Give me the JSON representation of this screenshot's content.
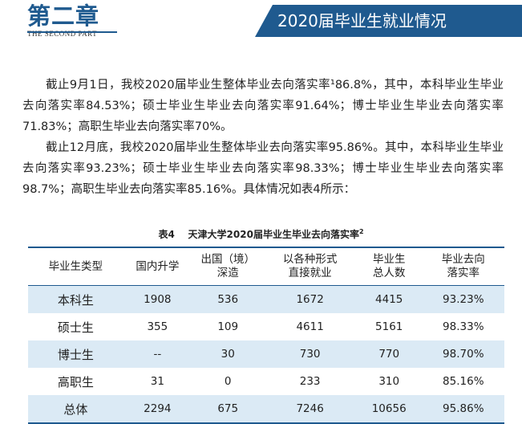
{
  "header": {
    "chapter_cn": "第二章",
    "chapter_en": "THE SECOND PART",
    "banner_title": "2020届毕业生就业情况"
  },
  "paragraphs": [
    "截止9月1日，我校2020届毕业生整体毕业去向落实率¹86.8%，其中，本科毕业生毕业去向落实率84.53%；硕士毕业生毕业去向落实率91.64%；博士毕业生毕业去向落实率71.83%；高职生毕业去向落实率70%。",
    "截止12月底，我校2020届毕业生整体毕业去向落实率95.86%。其中，本科毕业生毕业去向落实率93.23%；硕士毕业生毕业去向落实率98.33%；博士毕业生毕业去向落实率98.7%；高职生毕业去向落实率85.16%。具体情况如表4所示："
  ],
  "table": {
    "caption_num": "表4",
    "caption_title": "天津大学2020届毕业生毕业去向落实率",
    "caption_sup": "2",
    "headers": [
      [
        "毕业生类型",
        ""
      ],
      [
        "国内升学",
        ""
      ],
      [
        "出国（境）",
        "深造"
      ],
      [
        "以各种形式",
        "直接就业"
      ],
      [
        "毕业生",
        "总人数"
      ],
      [
        "毕业去向",
        "落实率"
      ]
    ],
    "rows": [
      [
        "本科生",
        "1908",
        "536",
        "1672",
        "4415",
        "93.23%"
      ],
      [
        "硕士生",
        "355",
        "109",
        "4611",
        "5161",
        "98.33%"
      ],
      [
        "博士生",
        "--",
        "30",
        "730",
        "770",
        "98.70%"
      ],
      [
        "高职生",
        "31",
        "0",
        "233",
        "310",
        "85.16%"
      ],
      [
        "总体",
        "2294",
        "675",
        "7246",
        "10656",
        "95.86%"
      ]
    ]
  },
  "colors": {
    "accent": "#1f5a8f",
    "row_shade": "#dbeaf5"
  }
}
